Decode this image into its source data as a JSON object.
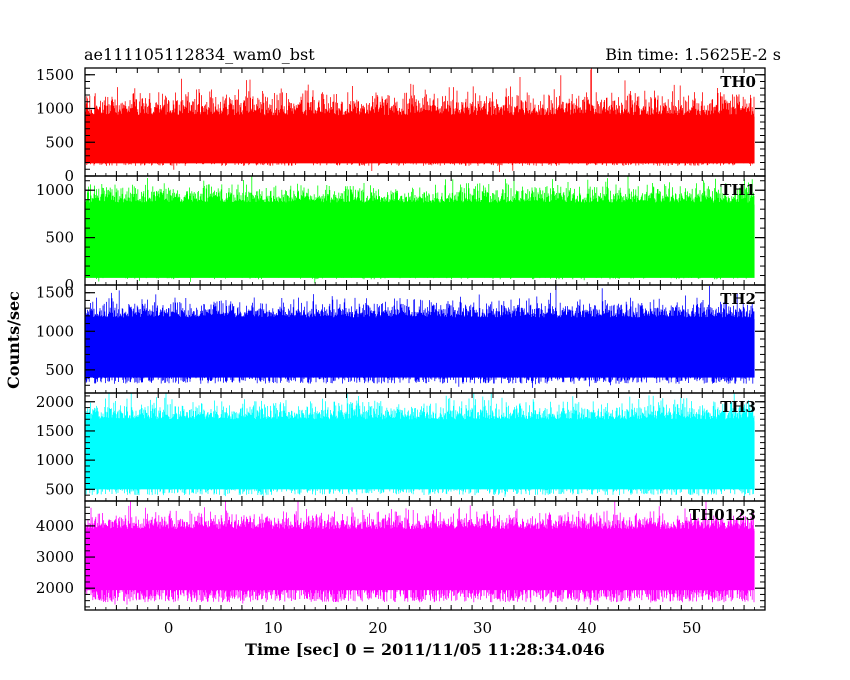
{
  "header": {
    "left_title": "ae111105112834_wam0_bst",
    "right_title": "Bin time: 1.5625E-2 s"
  },
  "chart_data": {
    "type": "line",
    "xlabel": "Time [sec] 0 = 2011/11/05 11:28:34.046",
    "ylabel": "Counts/sec",
    "xlim": [
      -8,
      57
    ],
    "x_range_data": [
      -8,
      56
    ],
    "xticks": [
      0,
      10,
      20,
      30,
      40,
      50
    ],
    "bin_time_s": 0.015625,
    "grid": false,
    "panels": [
      {
        "name": "TH0",
        "color": "#ff0000",
        "ylim": [
          0,
          1600
        ],
        "yticks": [
          0,
          500,
          1000,
          1500
        ],
        "band": [
          150,
          900,
          1450
        ],
        "peak_max": 1600
      },
      {
        "name": "TH1",
        "color": "#00ff00",
        "ylim": [
          0,
          1150
        ],
        "yticks": [
          0,
          500,
          1000
        ],
        "band": [
          60,
          870,
          1150
        ],
        "peak_max": 1150
      },
      {
        "name": "TH2",
        "color": "#0000ff",
        "ylim": [
          200,
          1600
        ],
        "yticks": [
          500,
          1000,
          1500
        ],
        "band": [
          320,
          1180,
          1520
        ],
        "peak_max": 1600
      },
      {
        "name": "TH3",
        "color": "#00ffff",
        "ylim": [
          300,
          2150
        ],
        "yticks": [
          500,
          1000,
          1500,
          2000
        ],
        "band": [
          400,
          1700,
          2150
        ],
        "peak_max": 2150
      },
      {
        "name": "TH0123",
        "color": "#ff00ff",
        "ylim": [
          1300,
          4800
        ],
        "yticks": [
          2000,
          3000,
          4000
        ],
        "band": [
          1550,
          3900,
          4750
        ],
        "peak_max": 4800
      }
    ]
  }
}
